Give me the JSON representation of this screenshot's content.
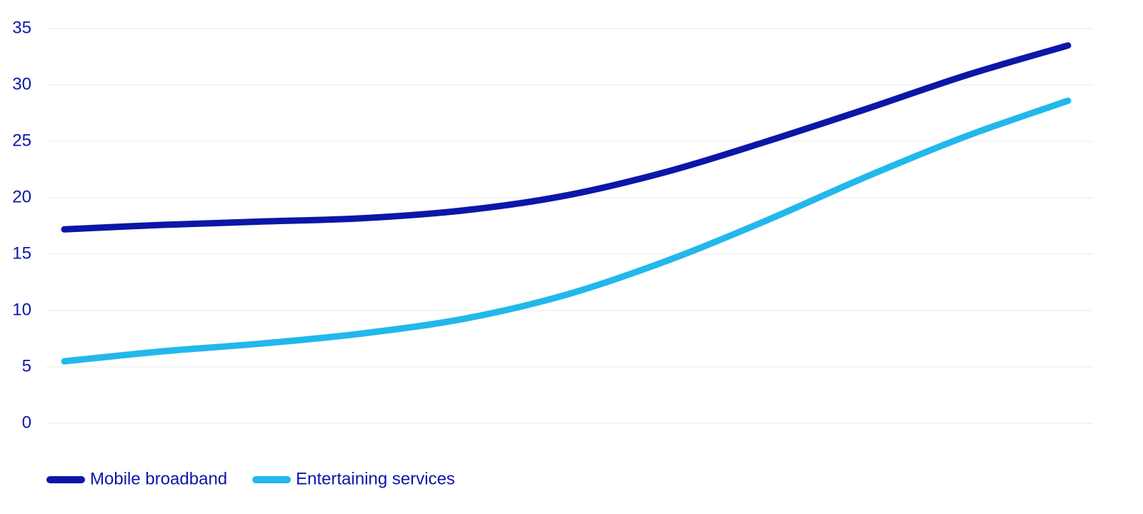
{
  "chart_data": {
    "type": "line",
    "categories": [
      null,
      null,
      null,
      null,
      null,
      null,
      null,
      null,
      null,
      null,
      null
    ],
    "series": [
      {
        "name": "Mobile broadband",
        "color": "#0c16a8",
        "values": [
          17.2,
          17.6,
          17.9,
          18.2,
          18.9,
          20.2,
          22.3,
          25.0,
          27.9,
          30.9,
          33.5
        ]
      },
      {
        "name": "Entertaining services",
        "color": "#22b8ec",
        "values": [
          5.5,
          6.4,
          7.1,
          8.0,
          9.3,
          11.4,
          14.4,
          18.0,
          21.9,
          25.5,
          28.6
        ]
      }
    ],
    "ylim": [
      0,
      35
    ],
    "yticks": [
      0,
      5,
      10,
      15,
      20,
      25,
      30,
      35
    ],
    "grid": true,
    "legend": "bottom-left"
  }
}
